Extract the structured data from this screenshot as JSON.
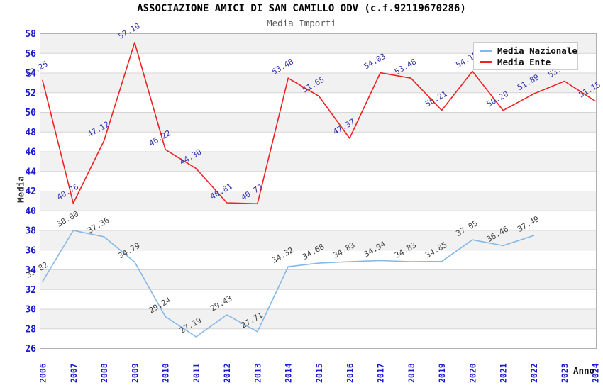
{
  "header": {
    "title": "ASSOCIAZIONE AMICI DI SAN CAMILLO ODV (c.f.92119670286)",
    "subtitle": "Media Importi"
  },
  "chart_data": {
    "type": "line",
    "title": "ASSOCIAZIONE AMICI DI SAN CAMILLO ODV (c.f.92119670286)",
    "subtitle": "Media Importi",
    "x_label": "Anno",
    "y_label": "Media",
    "x_categories": [
      "2006",
      "2007",
      "2008",
      "2009",
      "2010",
      "2011",
      "2012",
      "2013",
      "2014",
      "2015",
      "2016",
      "2017",
      "2018",
      "2019",
      "2020",
      "2021",
      "2022",
      "2023",
      "2024"
    ],
    "y_ticks": [
      26,
      28,
      30,
      32,
      34,
      36,
      38,
      40,
      42,
      44,
      46,
      48,
      50,
      52,
      54,
      56,
      58
    ],
    "ylim": [
      26,
      58
    ],
    "grid": "horizontal gridlines with alternating shaded bands",
    "legend_position": "top-right",
    "series": [
      {
        "name": "Media Nazionale",
        "color": "#85b7e7",
        "label_color": "#3f3f3f",
        "values": [
          32.82,
          38.0,
          37.36,
          34.79,
          29.24,
          27.19,
          29.43,
          27.71,
          34.32,
          34.68,
          34.83,
          34.94,
          34.83,
          34.85,
          37.05,
          36.46,
          37.49,
          null,
          null
        ],
        "labels": [
          "32.82",
          "38.00",
          "37.36",
          "34.79",
          "29.24",
          "27.19",
          "29.43",
          "27.71",
          "34.32",
          "34.68",
          "34.83",
          "34.94",
          "34.83",
          "34.85",
          "37.05",
          "36.46",
          "37.49",
          null,
          null
        ]
      },
      {
        "name": "Media Ente",
        "color": "#ee2222",
        "label_color": "#3333aa",
        "values": [
          53.25,
          40.76,
          47.12,
          57.1,
          46.22,
          44.3,
          40.81,
          40.72,
          53.48,
          51.65,
          47.37,
          54.03,
          53.48,
          50.21,
          54.18,
          50.2,
          51.89,
          53.17,
          51.15
        ],
        "labels": [
          "53.25",
          "40.76",
          "47.12",
          "57.10",
          "46.22",
          "44.30",
          "40.81",
          "40.72",
          "53.48",
          "51.65",
          "47.37",
          "54.03",
          "53.48",
          "50.21",
          "54.18",
          "50.20",
          "51.89",
          "53.17",
          "51.15"
        ]
      }
    ],
    "colors": {
      "band": "#f1f1f1",
      "grid": "#d6d6d6",
      "border": "#b0b0b0",
      "tick_text": "#1a1acc"
    }
  },
  "legend": {
    "items": [
      {
        "label": "Media Nazionale",
        "color": "#85b7e7"
      },
      {
        "label": "Media Ente",
        "color": "#ee2222"
      }
    ]
  }
}
